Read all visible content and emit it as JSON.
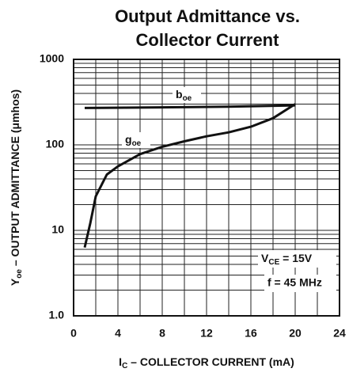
{
  "chart_data": {
    "type": "line",
    "title": [
      "Output Admittance vs.",
      "Collector Current"
    ],
    "x_label": "IC – COLLECTOR CURRENT (mA)",
    "y_label": "Yoe – OUTPUT ADMITTANCE (μmhos)",
    "xlim": [
      0,
      24
    ],
    "xticks": [
      0,
      4,
      8,
      12,
      16,
      20,
      24
    ],
    "ylim": [
      1,
      1000
    ],
    "yticks": [
      {
        "value": 1,
        "label": "1.0"
      },
      10,
      100,
      1000
    ],
    "log_y": true,
    "grid": true,
    "minor_grid": true,
    "series": [
      {
        "name": "boe",
        "color": "#111111",
        "x": [
          1,
          8,
          14,
          20
        ],
        "values": [
          270,
          275,
          280,
          290
        ]
      },
      {
        "name": "goe",
        "color": "#111111",
        "x": [
          1,
          1.5,
          2,
          3,
          4,
          6,
          8,
          10,
          12,
          14,
          16,
          18,
          20
        ],
        "values": [
          6.3,
          12,
          25,
          45,
          56,
          78,
          95,
          110,
          126,
          140,
          163,
          205,
          300
        ]
      }
    ],
    "annotations": [
      "VCE = 15V",
      "f = 45 MHz"
    ]
  }
}
